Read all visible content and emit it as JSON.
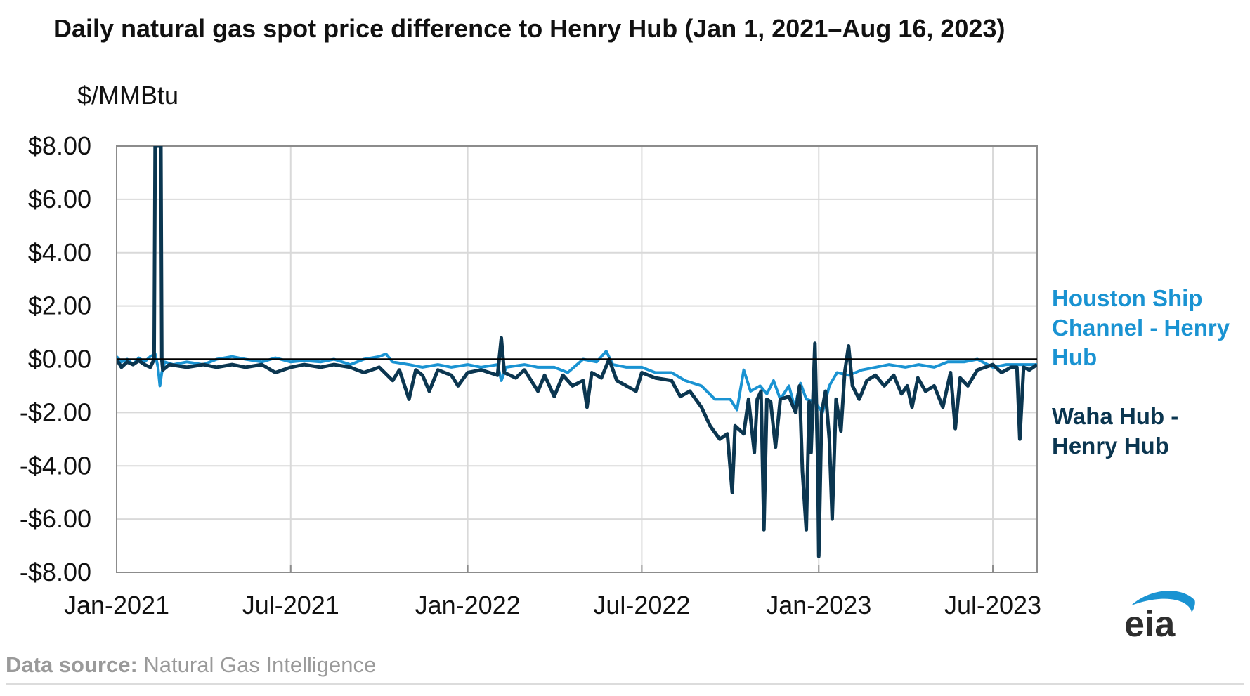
{
  "title": "Daily natural gas spot price difference to Henry Hub (Jan 1, 2021–Aug 16, 2023)",
  "source": {
    "label": "Data source:",
    "text": "Natural Gas Intelligence"
  },
  "logo": {
    "text": "eia"
  },
  "colors": {
    "houston": "#1a93d2",
    "waha": "#0b3650",
    "grid": "#d9d9d9",
    "frame": "#8c8c8c",
    "zero_line": "#000000"
  },
  "chart_data": {
    "type": "line",
    "title": "Daily natural gas spot price difference to Henry Hub (Jan 1, 2021–Aug 16, 2023)",
    "ylabel": "$/MMBtu",
    "xlabel": "",
    "ylim": [
      -8,
      8
    ],
    "xlim": [
      "2021-01-01",
      "2023-08-16"
    ],
    "yticks": [
      8,
      6,
      4,
      2,
      0,
      -2,
      -4,
      -6,
      -8
    ],
    "ytick_labels": [
      "$8.00",
      "$6.00",
      "$4.00",
      "$2.00",
      "$0.00",
      "-$2.00",
      "-$4.00",
      "-$6.00",
      "-$8.00"
    ],
    "xticks": [
      "2021-01-01",
      "2021-07-01",
      "2022-01-01",
      "2022-07-01",
      "2023-01-01",
      "2023-07-01"
    ],
    "xtick_labels": [
      "Jan-2021",
      "Jul-2021",
      "Jan-2022",
      "Jul-2022",
      "Jan-2023",
      "Jul-2023"
    ],
    "grid": true,
    "legend": "right",
    "series": [
      {
        "name": "Houston Ship Channel - Henry Hub",
        "legend_lines": [
          "Houston Ship",
          "Channel - Henry",
          "Hub"
        ],
        "color": "#1a93d2",
        "points": [
          [
            "2021-01-01",
            0.1
          ],
          [
            "2021-01-06",
            -0.1
          ],
          [
            "2021-01-12",
            0.0
          ],
          [
            "2021-01-18",
            -0.2
          ],
          [
            "2021-01-24",
            0.05
          ],
          [
            "2021-01-30",
            -0.1
          ],
          [
            "2021-02-05",
            0.1
          ],
          [
            "2021-02-10",
            0.2
          ],
          [
            "2021-02-13",
            -0.3
          ],
          [
            "2021-02-15",
            -1.0
          ],
          [
            "2021-02-17",
            -0.5
          ],
          [
            "2021-02-20",
            -0.1
          ],
          [
            "2021-03-01",
            -0.2
          ],
          [
            "2021-03-15",
            -0.1
          ],
          [
            "2021-04-01",
            -0.2
          ],
          [
            "2021-04-15",
            0.0
          ],
          [
            "2021-05-01",
            0.1
          ],
          [
            "2021-05-15",
            0.0
          ],
          [
            "2021-06-01",
            -0.1
          ],
          [
            "2021-06-15",
            0.05
          ],
          [
            "2021-07-01",
            -0.1
          ],
          [
            "2021-07-15",
            -0.05
          ],
          [
            "2021-08-01",
            -0.1
          ],
          [
            "2021-08-15",
            0.0
          ],
          [
            "2021-09-01",
            -0.2
          ],
          [
            "2021-09-15",
            0.0
          ],
          [
            "2021-10-01",
            0.1
          ],
          [
            "2021-10-08",
            0.2
          ],
          [
            "2021-10-15",
            -0.1
          ],
          [
            "2021-11-01",
            -0.2
          ],
          [
            "2021-11-15",
            -0.3
          ],
          [
            "2021-12-01",
            -0.2
          ],
          [
            "2021-12-15",
            -0.3
          ],
          [
            "2022-01-01",
            -0.2
          ],
          [
            "2022-01-15",
            -0.3
          ],
          [
            "2022-02-01",
            -0.2
          ],
          [
            "2022-02-05",
            -0.8
          ],
          [
            "2022-02-10",
            -0.3
          ],
          [
            "2022-03-01",
            -0.2
          ],
          [
            "2022-03-15",
            -0.3
          ],
          [
            "2022-04-01",
            -0.3
          ],
          [
            "2022-04-15",
            -0.5
          ],
          [
            "2022-05-01",
            0.0
          ],
          [
            "2022-05-15",
            -0.1
          ],
          [
            "2022-05-25",
            0.3
          ],
          [
            "2022-06-01",
            -0.2
          ],
          [
            "2022-06-15",
            -0.3
          ],
          [
            "2022-07-01",
            -0.3
          ],
          [
            "2022-07-15",
            -0.5
          ],
          [
            "2022-08-01",
            -0.5
          ],
          [
            "2022-08-15",
            -0.8
          ],
          [
            "2022-09-01",
            -1.0
          ],
          [
            "2022-09-15",
            -1.5
          ],
          [
            "2022-10-01",
            -1.5
          ],
          [
            "2022-10-08",
            -1.9
          ],
          [
            "2022-10-15",
            -0.4
          ],
          [
            "2022-10-22",
            -1.2
          ],
          [
            "2022-11-01",
            -1.0
          ],
          [
            "2022-11-08",
            -1.3
          ],
          [
            "2022-11-15",
            -0.8
          ],
          [
            "2022-11-22",
            -1.5
          ],
          [
            "2022-12-01",
            -1.0
          ],
          [
            "2022-12-07",
            -1.8
          ],
          [
            "2022-12-13",
            -0.9
          ],
          [
            "2022-12-19",
            -1.5
          ],
          [
            "2022-12-28",
            -1.6
          ],
          [
            "2023-01-05",
            -2.0
          ],
          [
            "2023-01-12",
            -1.0
          ],
          [
            "2023-01-20",
            -0.5
          ],
          [
            "2023-02-01",
            -0.6
          ],
          [
            "2023-02-15",
            -0.4
          ],
          [
            "2023-03-01",
            -0.3
          ],
          [
            "2023-03-15",
            -0.2
          ],
          [
            "2023-04-01",
            -0.3
          ],
          [
            "2023-04-15",
            -0.2
          ],
          [
            "2023-05-01",
            -0.3
          ],
          [
            "2023-05-15",
            -0.1
          ],
          [
            "2023-06-01",
            -0.1
          ],
          [
            "2023-06-15",
            0.0
          ],
          [
            "2023-07-01",
            -0.3
          ],
          [
            "2023-07-15",
            -0.2
          ],
          [
            "2023-08-01",
            -0.2
          ],
          [
            "2023-08-16",
            -0.2
          ]
        ]
      },
      {
        "name": "Waha Hub - Henry Hub",
        "legend_lines": [
          "Waha Hub -",
          "Henry Hub"
        ],
        "color": "#0b3650",
        "points": [
          [
            "2021-01-01",
            0.0
          ],
          [
            "2021-01-06",
            -0.3
          ],
          [
            "2021-01-12",
            -0.1
          ],
          [
            "2021-01-18",
            -0.2
          ],
          [
            "2021-01-24",
            -0.05
          ],
          [
            "2021-01-30",
            -0.2
          ],
          [
            "2021-02-05",
            -0.3
          ],
          [
            "2021-02-09",
            0.0
          ],
          [
            "2021-02-10",
            8.0
          ],
          [
            "2021-02-12",
            8.0
          ],
          [
            "2021-02-14",
            8.0
          ],
          [
            "2021-02-16",
            8.0
          ],
          [
            "2021-02-17",
            0.0
          ],
          [
            "2021-02-18",
            -0.4
          ],
          [
            "2021-02-25",
            -0.2
          ],
          [
            "2021-03-15",
            -0.3
          ],
          [
            "2021-04-01",
            -0.2
          ],
          [
            "2021-04-15",
            -0.3
          ],
          [
            "2021-05-01",
            -0.2
          ],
          [
            "2021-05-15",
            -0.3
          ],
          [
            "2021-06-01",
            -0.2
          ],
          [
            "2021-06-15",
            -0.5
          ],
          [
            "2021-07-01",
            -0.3
          ],
          [
            "2021-07-15",
            -0.2
          ],
          [
            "2021-08-01",
            -0.3
          ],
          [
            "2021-08-15",
            -0.2
          ],
          [
            "2021-09-01",
            -0.3
          ],
          [
            "2021-09-15",
            -0.5
          ],
          [
            "2021-10-01",
            -0.3
          ],
          [
            "2021-10-15",
            -0.8
          ],
          [
            "2021-10-22",
            -0.4
          ],
          [
            "2021-11-01",
            -1.5
          ],
          [
            "2021-11-08",
            -0.4
          ],
          [
            "2021-11-15",
            -0.6
          ],
          [
            "2021-11-22",
            -1.2
          ],
          [
            "2021-12-01",
            -0.4
          ],
          [
            "2021-12-15",
            -0.6
          ],
          [
            "2021-12-22",
            -1.0
          ],
          [
            "2022-01-01",
            -0.5
          ],
          [
            "2022-01-15",
            -0.4
          ],
          [
            "2022-02-01",
            -0.6
          ],
          [
            "2022-02-05",
            0.8
          ],
          [
            "2022-02-08",
            -0.5
          ],
          [
            "2022-02-20",
            -0.7
          ],
          [
            "2022-03-01",
            -0.4
          ],
          [
            "2022-03-15",
            -1.2
          ],
          [
            "2022-03-22",
            -0.6
          ],
          [
            "2022-04-01",
            -1.4
          ],
          [
            "2022-04-10",
            -0.6
          ],
          [
            "2022-04-20",
            -1.0
          ],
          [
            "2022-05-01",
            -0.8
          ],
          [
            "2022-05-05",
            -1.8
          ],
          [
            "2022-05-10",
            -0.5
          ],
          [
            "2022-05-20",
            -0.7
          ],
          [
            "2022-05-28",
            0.0
          ],
          [
            "2022-06-05",
            -0.8
          ],
          [
            "2022-06-15",
            -1.0
          ],
          [
            "2022-06-25",
            -1.2
          ],
          [
            "2022-07-01",
            -0.5
          ],
          [
            "2022-07-15",
            -0.7
          ],
          [
            "2022-08-01",
            -0.8
          ],
          [
            "2022-08-10",
            -1.4
          ],
          [
            "2022-08-20",
            -1.2
          ],
          [
            "2022-09-01",
            -1.8
          ],
          [
            "2022-09-10",
            -2.5
          ],
          [
            "2022-09-20",
            -3.0
          ],
          [
            "2022-09-28",
            -2.8
          ],
          [
            "2022-10-03",
            -5.0
          ],
          [
            "2022-10-06",
            -2.5
          ],
          [
            "2022-10-15",
            -2.8
          ],
          [
            "2022-10-20",
            -1.5
          ],
          [
            "2022-10-26",
            -3.5
          ],
          [
            "2022-10-29",
            -1.5
          ],
          [
            "2022-11-02",
            -1.2
          ],
          [
            "2022-11-05",
            -6.4
          ],
          [
            "2022-11-08",
            -1.5
          ],
          [
            "2022-11-12",
            -1.6
          ],
          [
            "2022-11-17",
            -3.3
          ],
          [
            "2022-11-22",
            -1.5
          ],
          [
            "2022-12-01",
            -1.4
          ],
          [
            "2022-12-08",
            -2.0
          ],
          [
            "2022-12-12",
            -1.0
          ],
          [
            "2022-12-15",
            -4.2
          ],
          [
            "2022-12-19",
            -6.4
          ],
          [
            "2022-12-22",
            -1.6
          ],
          [
            "2022-12-24",
            -3.5
          ],
          [
            "2022-12-28",
            0.6
          ],
          [
            "2022-12-31",
            -4.0
          ],
          [
            "2023-01-01",
            -7.4
          ],
          [
            "2023-01-04",
            -2.0
          ],
          [
            "2023-01-08",
            -1.2
          ],
          [
            "2023-01-12",
            -3.0
          ],
          [
            "2023-01-15",
            -6.0
          ],
          [
            "2023-01-19",
            -1.5
          ],
          [
            "2023-01-24",
            -2.7
          ],
          [
            "2023-01-28",
            -0.5
          ],
          [
            "2023-02-01",
            0.5
          ],
          [
            "2023-02-05",
            -1.0
          ],
          [
            "2023-02-12",
            -1.5
          ],
          [
            "2023-02-20",
            -0.8
          ],
          [
            "2023-03-01",
            -0.6
          ],
          [
            "2023-03-10",
            -1.0
          ],
          [
            "2023-03-20",
            -0.6
          ],
          [
            "2023-03-28",
            -1.3
          ],
          [
            "2023-04-03",
            -1.0
          ],
          [
            "2023-04-08",
            -1.8
          ],
          [
            "2023-04-14",
            -0.7
          ],
          [
            "2023-04-22",
            -1.2
          ],
          [
            "2023-05-01",
            -1.0
          ],
          [
            "2023-05-10",
            -1.8
          ],
          [
            "2023-05-18",
            -0.5
          ],
          [
            "2023-05-23",
            -2.6
          ],
          [
            "2023-05-28",
            -0.7
          ],
          [
            "2023-06-05",
            -1.0
          ],
          [
            "2023-06-15",
            -0.4
          ],
          [
            "2023-07-01",
            -0.2
          ],
          [
            "2023-07-10",
            -0.5
          ],
          [
            "2023-07-20",
            -0.3
          ],
          [
            "2023-07-26",
            -0.3
          ],
          [
            "2023-07-29",
            -3.0
          ],
          [
            "2023-08-02",
            -0.3
          ],
          [
            "2023-08-08",
            -0.4
          ],
          [
            "2023-08-16",
            -0.2
          ]
        ]
      }
    ]
  }
}
